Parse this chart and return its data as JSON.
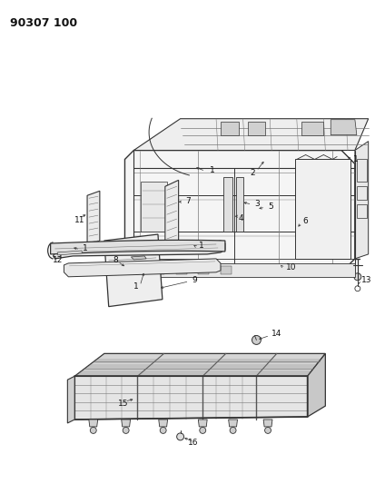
{
  "title": "90307 100",
  "bg_color": "#ffffff",
  "fig_width": 4.13,
  "fig_height": 5.33,
  "dpi": 100,
  "line_color": "#333333",
  "light_color": "#777777",
  "dark_color": "#111111"
}
